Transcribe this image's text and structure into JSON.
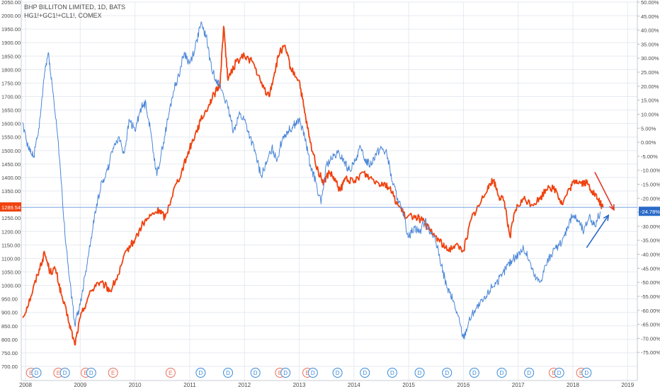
{
  "legend": {
    "main_symbol": "BHP BILLITON LIMITED, 1D, BATS",
    "compare_symbol": "HG1!+GC1!+CL1!, COMEX"
  },
  "colors": {
    "main_series": "#f0420f",
    "compare_series": "#4a86d8",
    "earnings_badge": "#e8705a",
    "dividend_badge": "#3a8ad8",
    "grid": "#e6eaf0",
    "axis_text": "#4a4a4a"
  },
  "price_badge": "1289.54",
  "percent_badge": "-24.78%",
  "chart_data": [
    {
      "type": "line",
      "title": "",
      "x_ticks": [
        "2008",
        "2009",
        "2010",
        "2011",
        "2012",
        "2013",
        "2014",
        "2015",
        "2016",
        "2017",
        "2018",
        "2019"
      ],
      "left_axis": {
        "ticks": [
          "2050.00",
          "2000.00",
          "1950.00",
          "1900.00",
          "1850.00",
          "1800.00",
          "1750.00",
          "1700.00",
          "1650.00",
          "1600.00",
          "1550.00",
          "1500.00",
          "1450.00",
          "1400.00",
          "1350.00",
          "1300.00",
          "1250.00",
          "1200.00",
          "1150.00",
          "1100.00",
          "1050.00",
          "1000.00",
          "950.00",
          "900.00",
          "850.00",
          "800.00",
          "750.00",
          "700.00"
        ],
        "ylim": [
          700,
          2050
        ]
      },
      "right_axis": {
        "ticks": [
          "50.00%",
          "45.00%",
          "40.00%",
          "35.00%",
          "30.00%",
          "25.00%",
          "20.00%",
          "15.00%",
          "10.00%",
          "5.00%",
          "0.00%",
          "-5.00%",
          "-10.00%",
          "-15.00%",
          "-20.00%",
          "-25.00%",
          "-30.00%",
          "-35.00%",
          "-40.00%",
          "-45.00%",
          "-50.00%",
          "-55.00%",
          "-60.00%",
          "-65.00%",
          "-70.00%",
          "-75.00%"
        ],
        "ylim": [
          -80,
          50
        ]
      },
      "series": [
        {
          "name": "BHP BILLITON LIMITED",
          "axis": "left",
          "color": "#f0420f",
          "points": [
            [
              2007.95,
              880
            ],
            [
              2008.1,
              960
            ],
            [
              2008.25,
              1060
            ],
            [
              2008.35,
              1120
            ],
            [
              2008.45,
              1050
            ],
            [
              2008.55,
              1060
            ],
            [
              2008.65,
              970
            ],
            [
              2008.8,
              860
            ],
            [
              2008.9,
              780
            ],
            [
              2009.0,
              880
            ],
            [
              2009.15,
              960
            ],
            [
              2009.3,
              1010
            ],
            [
              2009.45,
              1000
            ],
            [
              2009.55,
              980
            ],
            [
              2009.7,
              1040
            ],
            [
              2009.85,
              1130
            ],
            [
              2010.0,
              1170
            ],
            [
              2010.15,
              1230
            ],
            [
              2010.3,
              1260
            ],
            [
              2010.45,
              1280
            ],
            [
              2010.55,
              1250
            ],
            [
              2010.7,
              1350
            ],
            [
              2010.85,
              1420
            ],
            [
              2011.0,
              1510
            ],
            [
              2011.1,
              1560
            ],
            [
              2011.2,
              1610
            ],
            [
              2011.35,
              1670
            ],
            [
              2011.45,
              1710
            ],
            [
              2011.55,
              1740
            ],
            [
              2011.62,
              1960
            ],
            [
              2011.7,
              1760
            ],
            [
              2011.85,
              1830
            ],
            [
              2012.0,
              1850
            ],
            [
              2012.15,
              1830
            ],
            [
              2012.3,
              1750
            ],
            [
              2012.45,
              1700
            ],
            [
              2012.55,
              1790
            ],
            [
              2012.65,
              1870
            ],
            [
              2012.75,
              1880
            ],
            [
              2012.85,
              1800
            ],
            [
              2013.0,
              1760
            ],
            [
              2013.1,
              1640
            ],
            [
              2013.2,
              1530
            ],
            [
              2013.35,
              1420
            ],
            [
              2013.45,
              1380
            ],
            [
              2013.55,
              1420
            ],
            [
              2013.65,
              1390
            ],
            [
              2013.75,
              1350
            ],
            [
              2013.85,
              1400
            ],
            [
              2014.0,
              1380
            ],
            [
              2014.15,
              1420
            ],
            [
              2014.3,
              1400
            ],
            [
              2014.45,
              1380
            ],
            [
              2014.55,
              1380
            ],
            [
              2014.65,
              1360
            ],
            [
              2014.8,
              1300
            ],
            [
              2014.95,
              1250
            ],
            [
              2015.1,
              1260
            ],
            [
              2015.25,
              1240
            ],
            [
              2015.4,
              1200
            ],
            [
              2015.55,
              1170
            ],
            [
              2015.7,
              1130
            ],
            [
              2015.85,
              1150
            ],
            [
              2016.0,
              1130
            ],
            [
              2016.15,
              1250
            ],
            [
              2016.3,
              1300
            ],
            [
              2016.45,
              1370
            ],
            [
              2016.55,
              1390
            ],
            [
              2016.65,
              1330
            ],
            [
              2016.75,
              1310
            ],
            [
              2016.85,
              1180
            ],
            [
              2016.95,
              1280
            ],
            [
              2017.1,
              1320
            ],
            [
              2017.25,
              1300
            ],
            [
              2017.4,
              1320
            ],
            [
              2017.55,
              1370
            ],
            [
              2017.7,
              1350
            ],
            [
              2017.8,
              1300
            ],
            [
              2017.95,
              1360
            ],
            [
              2018.05,
              1390
            ],
            [
              2018.15,
              1380
            ],
            [
              2018.25,
              1380
            ],
            [
              2018.35,
              1350
            ],
            [
              2018.45,
              1320
            ],
            [
              2018.55,
              1289.54
            ]
          ]
        },
        {
          "name": "HG1!+GC1!+CL1!",
          "axis": "right",
          "color": "#4a86d8",
          "points": [
            [
              2007.95,
              7
            ],
            [
              2008.05,
              -2
            ],
            [
              2008.15,
              -5
            ],
            [
              2008.25,
              5
            ],
            [
              2008.35,
              25
            ],
            [
              2008.42,
              32
            ],
            [
              2008.5,
              18
            ],
            [
              2008.6,
              0
            ],
            [
              2008.7,
              -28
            ],
            [
              2008.8,
              -48
            ],
            [
              2008.9,
              -65
            ],
            [
              2009.0,
              -58
            ],
            [
              2009.1,
              -46
            ],
            [
              2009.2,
              -34
            ],
            [
              2009.3,
              -22
            ],
            [
              2009.4,
              -14
            ],
            [
              2009.5,
              -10
            ],
            [
              2009.6,
              -2
            ],
            [
              2009.7,
              2
            ],
            [
              2009.8,
              -4
            ],
            [
              2009.9,
              8
            ],
            [
              2010.0,
              4
            ],
            [
              2010.1,
              12
            ],
            [
              2010.2,
              14
            ],
            [
              2010.3,
              2
            ],
            [
              2010.4,
              -12
            ],
            [
              2010.5,
              -2
            ],
            [
              2010.6,
              8
            ],
            [
              2010.7,
              18
            ],
            [
              2010.8,
              24
            ],
            [
              2010.9,
              32
            ],
            [
              2011.0,
              28
            ],
            [
              2011.1,
              34
            ],
            [
              2011.2,
              42
            ],
            [
              2011.3,
              38
            ],
            [
              2011.4,
              26
            ],
            [
              2011.5,
              22
            ],
            [
              2011.6,
              18
            ],
            [
              2011.7,
              12
            ],
            [
              2011.8,
              4
            ],
            [
              2011.9,
              10
            ],
            [
              2012.0,
              8
            ],
            [
              2012.1,
              2
            ],
            [
              2012.2,
              -4
            ],
            [
              2012.3,
              -12
            ],
            [
              2012.4,
              -8
            ],
            [
              2012.5,
              -2
            ],
            [
              2012.6,
              -6
            ],
            [
              2012.7,
              2
            ],
            [
              2012.8,
              4
            ],
            [
              2012.9,
              6
            ],
            [
              2013.0,
              8
            ],
            [
              2013.1,
              2
            ],
            [
              2013.2,
              -8
            ],
            [
              2013.3,
              -14
            ],
            [
              2013.4,
              -22
            ],
            [
              2013.5,
              -8
            ],
            [
              2013.6,
              -6
            ],
            [
              2013.7,
              -4
            ],
            [
              2013.8,
              -6
            ],
            [
              2013.9,
              -10
            ],
            [
              2014.0,
              -8
            ],
            [
              2014.1,
              -2
            ],
            [
              2014.2,
              -6
            ],
            [
              2014.3,
              -8
            ],
            [
              2014.4,
              -4
            ],
            [
              2014.5,
              -2
            ],
            [
              2014.6,
              -4
            ],
            [
              2014.7,
              -14
            ],
            [
              2014.8,
              -20
            ],
            [
              2014.9,
              -26
            ],
            [
              2015.0,
              -34
            ],
            [
              2015.1,
              -30
            ],
            [
              2015.2,
              -32
            ],
            [
              2015.3,
              -28
            ],
            [
              2015.4,
              -32
            ],
            [
              2015.5,
              -36
            ],
            [
              2015.6,
              -44
            ],
            [
              2015.7,
              -52
            ],
            [
              2015.8,
              -56
            ],
            [
              2015.9,
              -62
            ],
            [
              2016.0,
              -70
            ],
            [
              2016.1,
              -64
            ],
            [
              2016.2,
              -60
            ],
            [
              2016.3,
              -58
            ],
            [
              2016.4,
              -56
            ],
            [
              2016.5,
              -52
            ],
            [
              2016.6,
              -50
            ],
            [
              2016.7,
              -48
            ],
            [
              2016.8,
              -44
            ],
            [
              2016.9,
              -42
            ],
            [
              2017.0,
              -40
            ],
            [
              2017.1,
              -38
            ],
            [
              2017.2,
              -42
            ],
            [
              2017.3,
              -48
            ],
            [
              2017.4,
              -50
            ],
            [
              2017.5,
              -44
            ],
            [
              2017.6,
              -40
            ],
            [
              2017.7,
              -38
            ],
            [
              2017.8,
              -36
            ],
            [
              2017.9,
              -30
            ],
            [
              2018.0,
              -26
            ],
            [
              2018.1,
              -28
            ],
            [
              2018.2,
              -32
            ],
            [
              2018.3,
              -26
            ],
            [
              2018.4,
              -30
            ],
            [
              2018.5,
              -24.78
            ]
          ]
        }
      ],
      "event_markers": [
        {
          "x": 2008.1,
          "label": "E",
          "kind": "earnings"
        },
        {
          "x": 2008.2,
          "label": "D",
          "kind": "dividend"
        },
        {
          "x": 2008.6,
          "label": "E",
          "kind": "earnings"
        },
        {
          "x": 2008.72,
          "label": "D",
          "kind": "dividend"
        },
        {
          "x": 2009.1,
          "label": "E",
          "kind": "earnings"
        },
        {
          "x": 2009.2,
          "label": "D",
          "kind": "dividend"
        },
        {
          "x": 2009.6,
          "label": "E",
          "kind": "earnings"
        },
        {
          "x": 2010.65,
          "label": "E",
          "kind": "earnings"
        },
        {
          "x": 2011.2,
          "label": "D",
          "kind": "dividend"
        },
        {
          "x": 2011.7,
          "label": "D",
          "kind": "dividend"
        },
        {
          "x": 2012.2,
          "label": "D",
          "kind": "dividend"
        },
        {
          "x": 2012.65,
          "label": "E",
          "kind": "earnings"
        },
        {
          "x": 2012.75,
          "label": "D",
          "kind": "dividend"
        },
        {
          "x": 2013.15,
          "label": "E",
          "kind": "earnings"
        },
        {
          "x": 2013.25,
          "label": "D",
          "kind": "dividend"
        },
        {
          "x": 2013.7,
          "label": "D",
          "kind": "dividend"
        },
        {
          "x": 2014.2,
          "label": "D",
          "kind": "dividend"
        },
        {
          "x": 2014.7,
          "label": "D",
          "kind": "dividend"
        },
        {
          "x": 2015.2,
          "label": "D",
          "kind": "dividend"
        },
        {
          "x": 2015.7,
          "label": "D",
          "kind": "dividend"
        },
        {
          "x": 2016.2,
          "label": "D",
          "kind": "dividend"
        },
        {
          "x": 2016.7,
          "label": "D",
          "kind": "dividend"
        },
        {
          "x": 2017.2,
          "label": "D",
          "kind": "dividend"
        },
        {
          "x": 2017.65,
          "label": "E",
          "kind": "earnings"
        },
        {
          "x": 2017.75,
          "label": "D",
          "kind": "dividend"
        },
        {
          "x": 2018.15,
          "label": "E",
          "kind": "earnings"
        },
        {
          "x": 2018.25,
          "label": "D",
          "kind": "dividend"
        }
      ],
      "annotations": [
        {
          "kind": "arrow",
          "color": "#e03a2a",
          "from": [
            2018.4,
            1420
          ],
          "to": [
            2018.75,
            1280
          ]
        },
        {
          "kind": "arrow",
          "color": "#2a6bc8",
          "from": [
            2018.25,
            1140
          ],
          "to": [
            2018.65,
            1260
          ]
        }
      ]
    }
  ]
}
